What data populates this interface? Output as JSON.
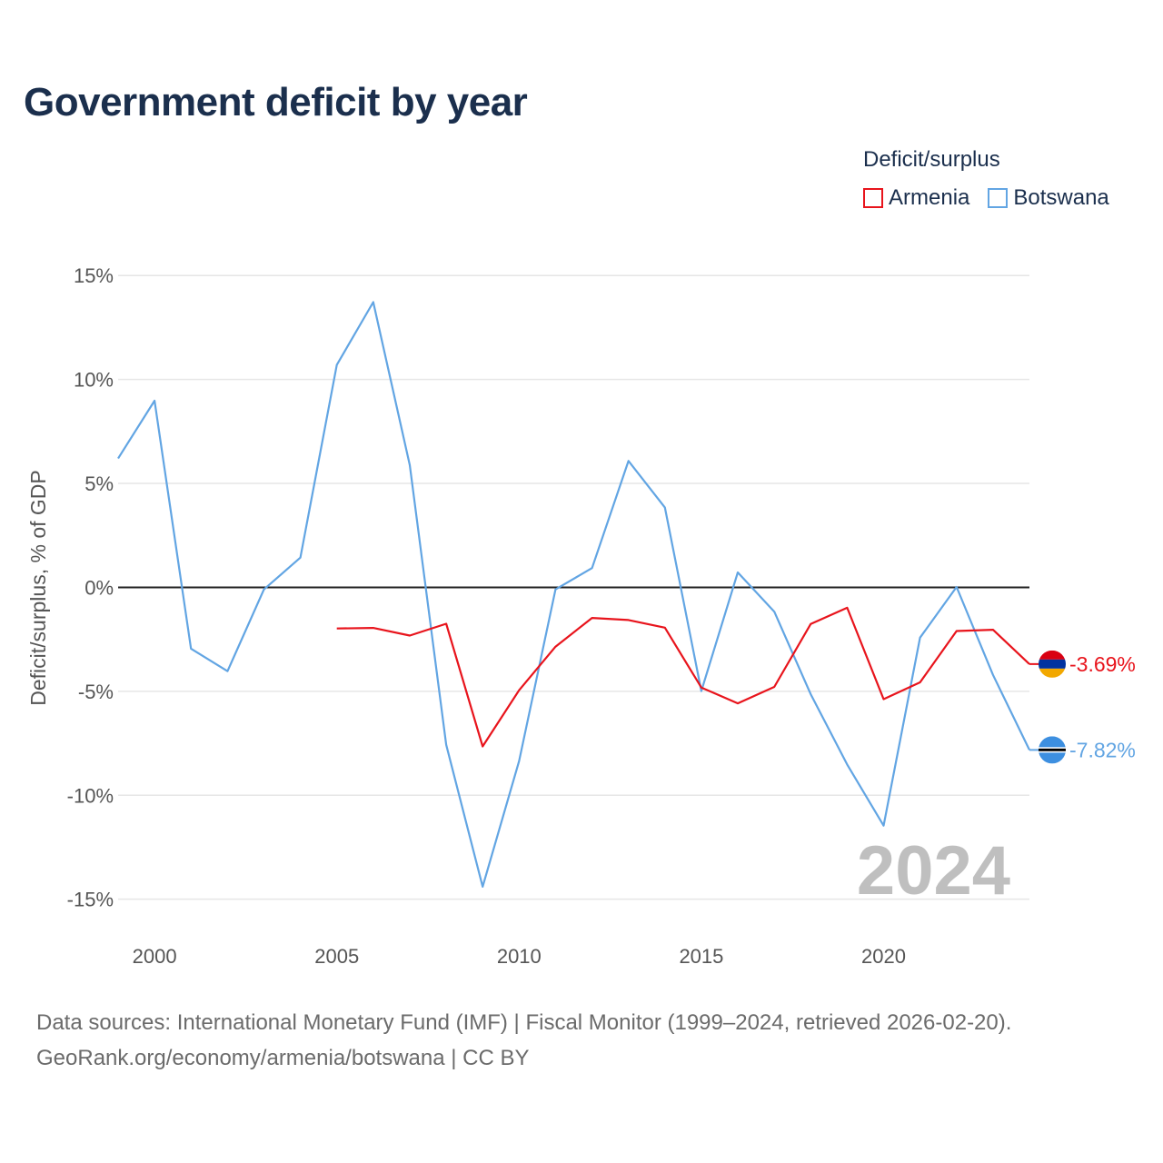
{
  "title": "Government deficit by year",
  "legend": {
    "title": "Deficit/surplus",
    "items": [
      {
        "name": "Armenia",
        "color": "#e8141c"
      },
      {
        "name": "Botswana",
        "color": "#62a5e3"
      }
    ]
  },
  "footer": {
    "line1": "Data sources: International Monetary Fund (IMF) | Fiscal Monitor (1999–2024, retrieved 2026-02-20).",
    "line2": "GeoRank.org/economy/armenia/botswana | CC BY"
  },
  "chart_data": {
    "type": "line",
    "title": "Government deficit by year",
    "xlabel": "",
    "ylabel": "Deficit/surplus, % of GDP",
    "xlim": [
      1999,
      2024
    ],
    "ylim": [
      -16.5,
      17.5
    ],
    "x_ticks": [
      2000,
      2005,
      2010,
      2015,
      2020
    ],
    "y_ticks": [
      15,
      10,
      5,
      0,
      -5,
      -10,
      -15
    ],
    "y_tick_labels": [
      "15%",
      "10%",
      "5%",
      "0%",
      "-5%",
      "-10%",
      "-15%"
    ],
    "x_tick_labels": [
      "2000",
      "2005",
      "2010",
      "2015",
      "2020"
    ],
    "watermark_year": "2024",
    "grid": true,
    "series": [
      {
        "name": "Armenia",
        "color": "#e8141c",
        "end_label": "-3.69%",
        "points": [
          [
            2005,
            -1.98
          ],
          [
            2006,
            -1.95
          ],
          [
            2007,
            -2.32
          ],
          [
            2008,
            -1.75
          ],
          [
            2009,
            -7.65
          ],
          [
            2010,
            -4.95
          ],
          [
            2011,
            -2.85
          ],
          [
            2012,
            -1.47
          ],
          [
            2013,
            -1.57
          ],
          [
            2014,
            -1.94
          ],
          [
            2015,
            -4.82
          ],
          [
            2016,
            -5.58
          ],
          [
            2017,
            -4.79
          ],
          [
            2018,
            -1.76
          ],
          [
            2019,
            -0.98
          ],
          [
            2020,
            -5.38
          ],
          [
            2021,
            -4.57
          ],
          [
            2022,
            -2.1
          ],
          [
            2023,
            -2.04
          ],
          [
            2024,
            -3.69
          ]
        ]
      },
      {
        "name": "Botswana",
        "color": "#62a5e3",
        "end_label": "-7.82%",
        "points": [
          [
            1999,
            6.2
          ],
          [
            2000,
            8.98
          ],
          [
            2001,
            -2.95
          ],
          [
            2002,
            -4.03
          ],
          [
            2003,
            -0.1
          ],
          [
            2004,
            1.43
          ],
          [
            2005,
            10.7
          ],
          [
            2006,
            13.72
          ],
          [
            2007,
            5.88
          ],
          [
            2008,
            -7.57
          ],
          [
            2009,
            -14.4
          ],
          [
            2010,
            -8.36
          ],
          [
            2011,
            -0.1
          ],
          [
            2012,
            0.93
          ],
          [
            2013,
            6.08
          ],
          [
            2014,
            3.84
          ],
          [
            2015,
            -4.99
          ],
          [
            2016,
            0.72
          ],
          [
            2017,
            -1.17
          ],
          [
            2018,
            -5.14
          ],
          [
            2019,
            -8.52
          ],
          [
            2020,
            -11.46
          ],
          [
            2021,
            -2.42
          ],
          [
            2022,
            0.02
          ],
          [
            2023,
            -4.21
          ],
          [
            2024,
            -7.82
          ]
        ]
      }
    ]
  }
}
